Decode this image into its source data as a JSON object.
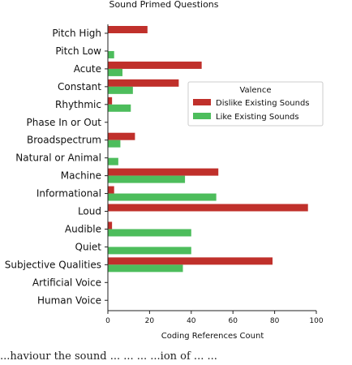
{
  "chart_data": {
    "type": "bar",
    "orientation": "horizontal",
    "title": "Sound Primed Questions",
    "xlabel": "Coding References Count",
    "ylabel": "",
    "xlim": [
      0,
      100
    ],
    "xticks": [
      0,
      20,
      40,
      60,
      80,
      100
    ],
    "categories": [
      "Pitch High",
      "Pitch Low",
      "Acute",
      "Constant",
      "Rhythmic",
      "Phase In or Out",
      "Broadspectrum",
      "Natural or Animal",
      "Machine",
      "Informational",
      "Loud",
      "Audible",
      "Quiet",
      "Subjective Qualities",
      "Artificial Voice",
      "Human Voice"
    ],
    "series": [
      {
        "name": "Dislike Existing Sounds",
        "color": "#c0302b",
        "values": [
          19,
          0,
          45,
          34,
          2,
          0,
          13,
          0,
          53,
          3,
          96,
          2,
          0,
          79,
          0,
          0
        ]
      },
      {
        "name": "Like Existing Sounds",
        "color": "#4dbd5c",
        "values": [
          0,
          3,
          7,
          12,
          11,
          0,
          6,
          5,
          37,
          52,
          0,
          40,
          40,
          36,
          0,
          0
        ]
      }
    ],
    "legend": {
      "title": "Valence",
      "position": "center-right"
    },
    "grid": false
  },
  "caption": "...haviour the sound ... ... ... ...ion of ... ..."
}
